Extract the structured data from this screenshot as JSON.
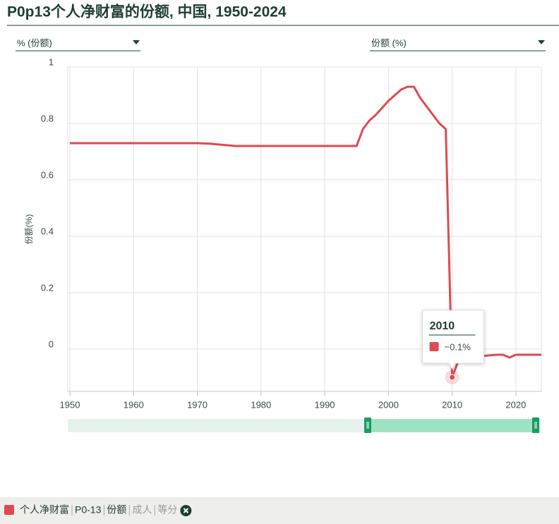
{
  "header": {
    "title": "P0p13个人净财富的份额, 中国, 1950-2024",
    "dropdown_left": "% (份额)",
    "dropdown_right": "份额 (%)"
  },
  "chart_data": {
    "type": "line",
    "ylabel": "份额(%)",
    "x": [
      1950,
      1970,
      1972,
      1974,
      1976,
      1995,
      1996,
      1997,
      1998,
      2000,
      2002,
      2003,
      2004,
      2005,
      2007,
      2008,
      2009,
      2010,
      2011,
      2012,
      2017,
      2018,
      2019,
      2020,
      2024
    ],
    "series": [
      {
        "name": "个人净财富",
        "color": "#dd4a50",
        "values": [
          0.73,
          0.73,
          0.728,
          0.724,
          0.72,
          0.72,
          0.78,
          0.81,
          0.83,
          0.88,
          0.92,
          0.93,
          0.93,
          0.89,
          0.83,
          0.8,
          0.78,
          -0.1,
          -0.04,
          -0.03,
          -0.02,
          -0.02,
          -0.03,
          -0.02,
          -0.02
        ]
      }
    ],
    "xlim": [
      1950,
      2024
    ],
    "xticks": [
      1950,
      1960,
      1970,
      1980,
      1990,
      2000,
      2010,
      2020
    ],
    "ylim": [
      -0.15,
      1
    ],
    "yticks": [
      0,
      0.2,
      0.4,
      0.6,
      0.8,
      1
    ],
    "grid": true
  },
  "tooltip": {
    "title": "2010",
    "label": "−0.1%"
  },
  "legend_bar": {
    "filters": [
      "P0-13",
      "份额",
      "成人",
      "等分"
    ]
  }
}
